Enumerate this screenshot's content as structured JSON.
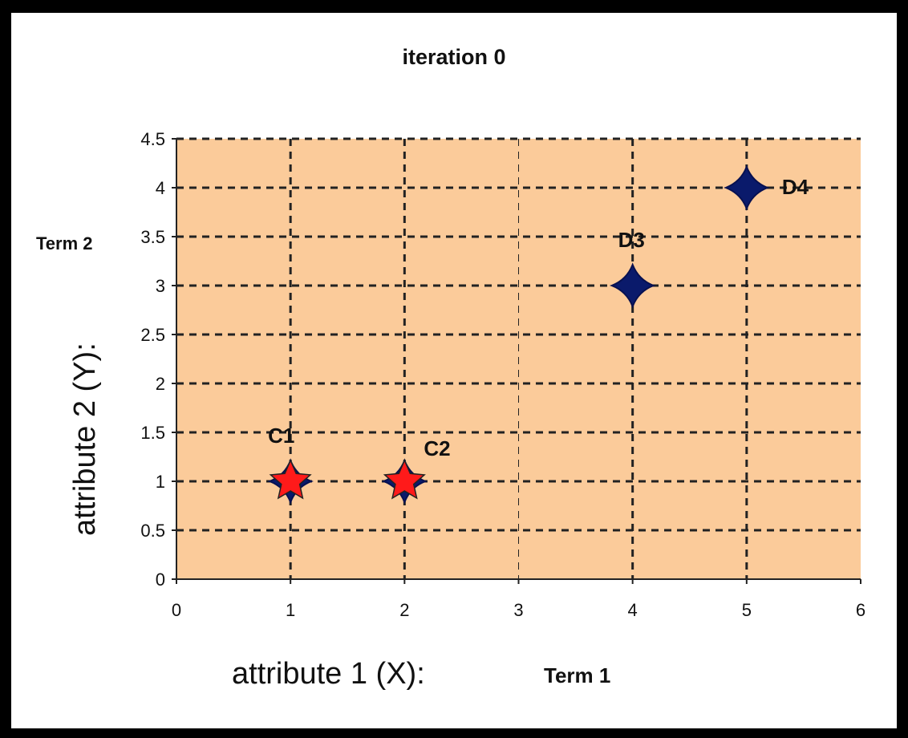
{
  "chart_data": {
    "type": "scatter",
    "title": "iteration 0",
    "xlabel": "attribute 1 (X):",
    "xlabel_note": "Term 1",
    "ylabel": "attribute 2 (Y):",
    "ylabel_note": "Term 2",
    "xlim": [
      0,
      6
    ],
    "ylim": [
      0,
      4.5
    ],
    "x_ticks": [
      "0",
      "1",
      "2",
      "3",
      "4",
      "5",
      "6"
    ],
    "y_ticks": [
      "0",
      "0.5",
      "1",
      "1.5",
      "2",
      "2.5",
      "3",
      "3.5",
      "4",
      "4.5"
    ],
    "grid": true,
    "plot_background": "#fbcb9a",
    "series": [
      {
        "marker": "diamond",
        "color": "#0a1a6b",
        "points": [
          {
            "x": 1,
            "y": 1,
            "label": ""
          },
          {
            "x": 2,
            "y": 1,
            "label": ""
          },
          {
            "x": 4,
            "y": 3,
            "label": "D3"
          },
          {
            "x": 5,
            "y": 4,
            "label": "D4"
          }
        ]
      },
      {
        "marker": "star",
        "color": "#ff1a1a",
        "points": [
          {
            "x": 1,
            "y": 1,
            "label": "C1"
          },
          {
            "x": 2,
            "y": 1,
            "label": "C2"
          }
        ]
      }
    ]
  }
}
